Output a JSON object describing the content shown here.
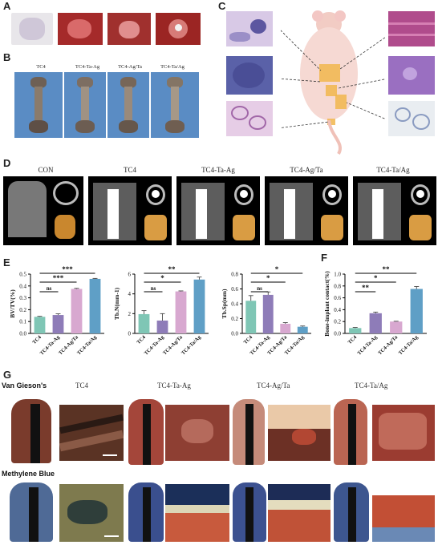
{
  "panels": {
    "A": "A",
    "B": "B",
    "C": "C",
    "D": "D",
    "E": "E",
    "F": "F",
    "G": "G"
  },
  "panel_b": {
    "labels": [
      "TC4",
      "TC4-Ta-Ag",
      "TC4-Ag/Ta",
      "TC4-Ta/Ag"
    ]
  },
  "panel_d": {
    "labels": [
      "CON",
      "TC4",
      "TC4-Ta-Ag",
      "TC4-Ag/Ta",
      "TC4-Ta/Ag"
    ]
  },
  "panel_g": {
    "row1": "Van Gieson's",
    "row2": "Methylene Blue",
    "labels": [
      "TC4",
      "TC4-Ta-Ag",
      "TC4-Ag/Ta",
      "TC4-Ta/Ag"
    ]
  },
  "colors": {
    "teal": "#7fc6b5",
    "purple": "#8e7cb8",
    "pink": "#d8a8d0",
    "blue": "#5f9fc6"
  },
  "chart_data": [
    {
      "type": "bar",
      "panel": "E",
      "categories": [
        "TC4",
        "TC4-Ta-Ag",
        "TC4-Ag/Ta",
        "TC4-Ta/Ag"
      ],
      "values": [
        0.14,
        0.155,
        0.375,
        0.46
      ],
      "errors": [
        0.004,
        0.01,
        0.005,
        0.004
      ],
      "ylabel": "BV/TV(%)",
      "ylim": [
        0,
        0.5
      ],
      "yticks": [
        "0.0",
        "0.1",
        "0.2",
        "0.3",
        "0.4",
        "0.5"
      ],
      "annotations": [
        {
          "from": 0,
          "to": 1,
          "text": "ns"
        },
        {
          "from": 0,
          "to": 2,
          "text": "***"
        },
        {
          "from": 0,
          "to": 3,
          "text": "***"
        }
      ]
    },
    {
      "type": "bar",
      "panel": "E",
      "categories": [
        "TC4",
        "TC4-Ta-Ag",
        "TC4-Ag/Ta",
        "TC4-Ta/Ag"
      ],
      "values": [
        1.95,
        1.3,
        4.25,
        5.45
      ],
      "errors": [
        0.35,
        0.7,
        0.05,
        0.25
      ],
      "ylabel": "Tb.N(mm-1)",
      "ylim": [
        0,
        6
      ],
      "yticks": [
        "0",
        "2",
        "4",
        "6"
      ],
      "annotations": [
        {
          "from": 0,
          "to": 1,
          "text": "ns"
        },
        {
          "from": 0,
          "to": 2,
          "text": "*"
        },
        {
          "from": 0,
          "to": 3,
          "text": "**"
        }
      ]
    },
    {
      "type": "bar",
      "panel": "E",
      "categories": [
        "TC4",
        "TC4-Ta-Ag",
        "TC4-Ag/Ta",
        "TC4-Ta/Ag"
      ],
      "values": [
        0.44,
        0.52,
        0.13,
        0.09
      ],
      "errors": [
        0.07,
        0.04,
        0.015,
        0.01
      ],
      "ylabel": "Tb.Sp(mm)",
      "ylim": [
        0,
        0.8
      ],
      "yticks": [
        "0.0",
        "0.2",
        "0.4",
        "0.6",
        "0.8"
      ],
      "annotations": [
        {
          "from": 0,
          "to": 1,
          "text": "ns"
        },
        {
          "from": 0,
          "to": 2,
          "text": "*"
        },
        {
          "from": 0,
          "to": 3,
          "text": "*"
        }
      ]
    },
    {
      "type": "bar",
      "panel": "F",
      "categories": [
        "TC4",
        "TC4-Ta-Ag",
        "TC4-Ag/Ta",
        "TC4-Ta/Ag"
      ],
      "values": [
        0.09,
        0.34,
        0.2,
        0.75
      ],
      "errors": [
        0.01,
        0.02,
        0.005,
        0.04
      ],
      "ylabel": "Bone-implant contact(%)",
      "ylim": [
        0,
        1.0
      ],
      "yticks": [
        "0.0",
        "0.2",
        "0.4",
        "0.6",
        "0.8",
        "1.0"
      ],
      "annotations": [
        {
          "from": 0,
          "to": 1,
          "text": "**"
        },
        {
          "from": 0,
          "to": 2,
          "text": "*"
        },
        {
          "from": 0,
          "to": 3,
          "text": "**"
        }
      ]
    }
  ]
}
